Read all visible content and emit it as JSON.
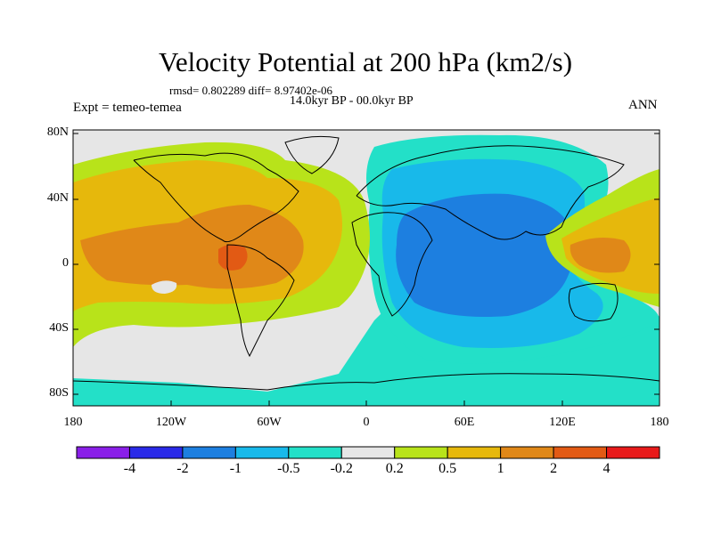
{
  "title": "Velocity Potential at 200 hPa (km2/s)",
  "stats_line": "rmsd= 0.802289 diff= 8.97402e-06",
  "period": "14.0kyr BP - 00.0kyr BP",
  "experiment": "Expt = temeo-temea",
  "season": "ANN",
  "lat_labels": [
    "80N",
    "40N",
    "0",
    "40S",
    "80S"
  ],
  "lon_labels": [
    "180",
    "120W",
    "60W",
    "0",
    "60E",
    "120E",
    "180"
  ],
  "colorbar": {
    "labels": [
      "-4",
      "-2",
      "-1",
      "-0.5",
      "-0.2",
      "0.2",
      "0.5",
      "1",
      "2",
      "4"
    ],
    "colors": [
      "#8a1fe8",
      "#2a2ae8",
      "#1d7fe0",
      "#18b9ea",
      "#23e0c8",
      "#e6e6e6",
      "#b8e31a",
      "#e6b80c",
      "#e08818",
      "#e25a14",
      "#e81a1a"
    ]
  }
}
